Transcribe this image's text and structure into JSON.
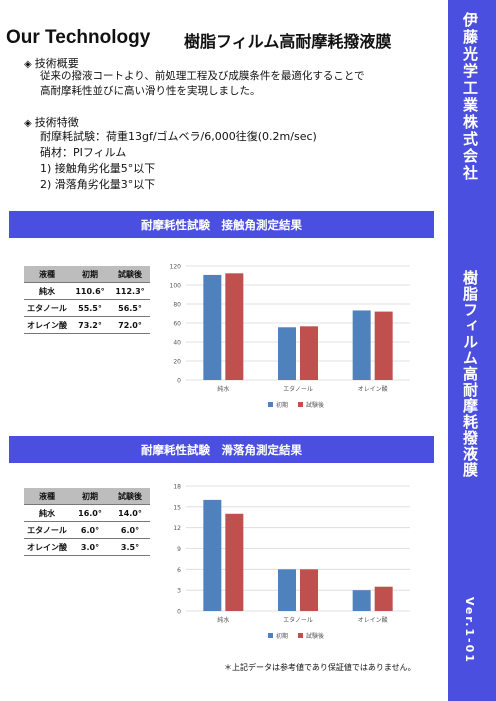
{
  "header": {
    "title_en": "Our Technology",
    "title_jp": "樹脂フィルム高耐摩耗撥液膜"
  },
  "overview": {
    "marker": "◈",
    "heading": "技術概要",
    "lines": [
      "従来の撥液コートより、前処理工程及び成膜条件を最適化することで",
      "高耐摩耗性並びに高い滑り性を実現しました。"
    ]
  },
  "features": {
    "marker": "◈",
    "heading": "技術特徴",
    "lines": [
      "耐摩耗試験：荷重13gf/ゴムベラ/6,000往復(0.2m/sec)",
      "硝材：PIフィルム",
      "1) 接触角劣化量5°以下",
      "2) 滑落角劣化量3°以下"
    ]
  },
  "contact_section": {
    "band_title": "耐摩耗性試験　接触角測定結果",
    "table": {
      "headers": [
        "液種",
        "初期",
        "試験後"
      ],
      "rows": [
        [
          "純水",
          "110.6°",
          "112.3°"
        ],
        [
          "エタノール",
          "55.5°",
          "56.5°"
        ],
        [
          "オレイン酸",
          "73.2°",
          "72.0°"
        ]
      ]
    }
  },
  "slide_section": {
    "band_title": "耐摩耗性試験　滑落角測定結果",
    "table": {
      "headers": [
        "液種",
        "初期",
        "試験後"
      ],
      "rows": [
        [
          "純水",
          "16.0°",
          "14.0°"
        ],
        [
          "エタノール",
          "6.0°",
          "6.0°"
        ],
        [
          "オレイン酸",
          "3.0°",
          "3.5°"
        ]
      ]
    }
  },
  "footnote": "＊上記データは参考値であり保証値ではありません。",
  "sidebar": {
    "company": "伊藤光学工業株式会社",
    "product": "樹脂フィルム高耐摩耗撥液膜",
    "version": "Ver.1-01"
  },
  "colors": {
    "accent": "#4b4fe0",
    "series_initial": "#4f81bd",
    "series_after": "#c0504d"
  },
  "chart_data": [
    {
      "type": "bar",
      "categories": [
        "純水",
        "エタノール",
        "オレイン酸"
      ],
      "series": [
        {
          "name": "初期",
          "values": [
            110.6,
            55.5,
            73.2
          ]
        },
        {
          "name": "試験後",
          "values": [
            112.3,
            56.5,
            72.0
          ]
        }
      ],
      "ylim": [
        0,
        120
      ],
      "yticks": [
        "0",
        "20",
        "40",
        "60",
        "80",
        "100",
        "120"
      ],
      "grid": true,
      "legend": "bottom"
    },
    {
      "type": "bar",
      "categories": [
        "純水",
        "エタノール",
        "オレイン酸"
      ],
      "series": [
        {
          "name": "初期",
          "values": [
            16.0,
            6.0,
            3.0
          ]
        },
        {
          "name": "試験後",
          "values": [
            14.0,
            6.0,
            3.5
          ]
        }
      ],
      "ylim": [
        0,
        18
      ],
      "yticks": [
        "0",
        "3",
        "6",
        "9",
        "12",
        "15",
        "18"
      ],
      "grid": true,
      "legend": "bottom"
    }
  ]
}
